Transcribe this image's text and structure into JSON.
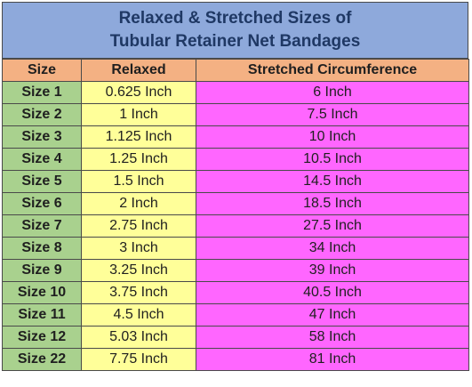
{
  "title": {
    "line1": "Relaxed & Stretched Sizes of",
    "line2": "Tubular Retainer Net Bandages"
  },
  "headers": [
    "Size",
    "Relaxed",
    "Stretched Circumference"
  ],
  "rows": [
    [
      "Size 1",
      "0.625 Inch",
      "6 Inch"
    ],
    [
      "Size 2",
      "1 Inch",
      "7.5 Inch"
    ],
    [
      "Size 3",
      "1.125 Inch",
      "10 Inch"
    ],
    [
      "Size 4",
      "1.25 Inch",
      "10.5 Inch"
    ],
    [
      "Size 5",
      "1.5 Inch",
      "14.5 Inch"
    ],
    [
      "Size 6",
      "2 Inch",
      "18.5 Inch"
    ],
    [
      "Size 7",
      "2.75 Inch",
      "27.5 Inch"
    ],
    [
      "Size 8",
      "3 Inch",
      "34 Inch"
    ],
    [
      "Size 9",
      "3.25 Inch",
      "39 Inch"
    ],
    [
      "Size 10",
      "3.75 Inch",
      "40.5 Inch"
    ],
    [
      "Size 11",
      "4.5 Inch",
      "47 Inch"
    ],
    [
      "Size 12",
      "5.03 Inch",
      "58 Inch"
    ],
    [
      "Size 22",
      "7.75 Inch",
      "81 Inch"
    ]
  ],
  "colors": {
    "title_bg": "#8ea9db",
    "header_bg": "#f4b183",
    "size_col": "#a9d18e",
    "relaxed_col": "#ffff99",
    "stretched_col": "#ff66ff"
  }
}
